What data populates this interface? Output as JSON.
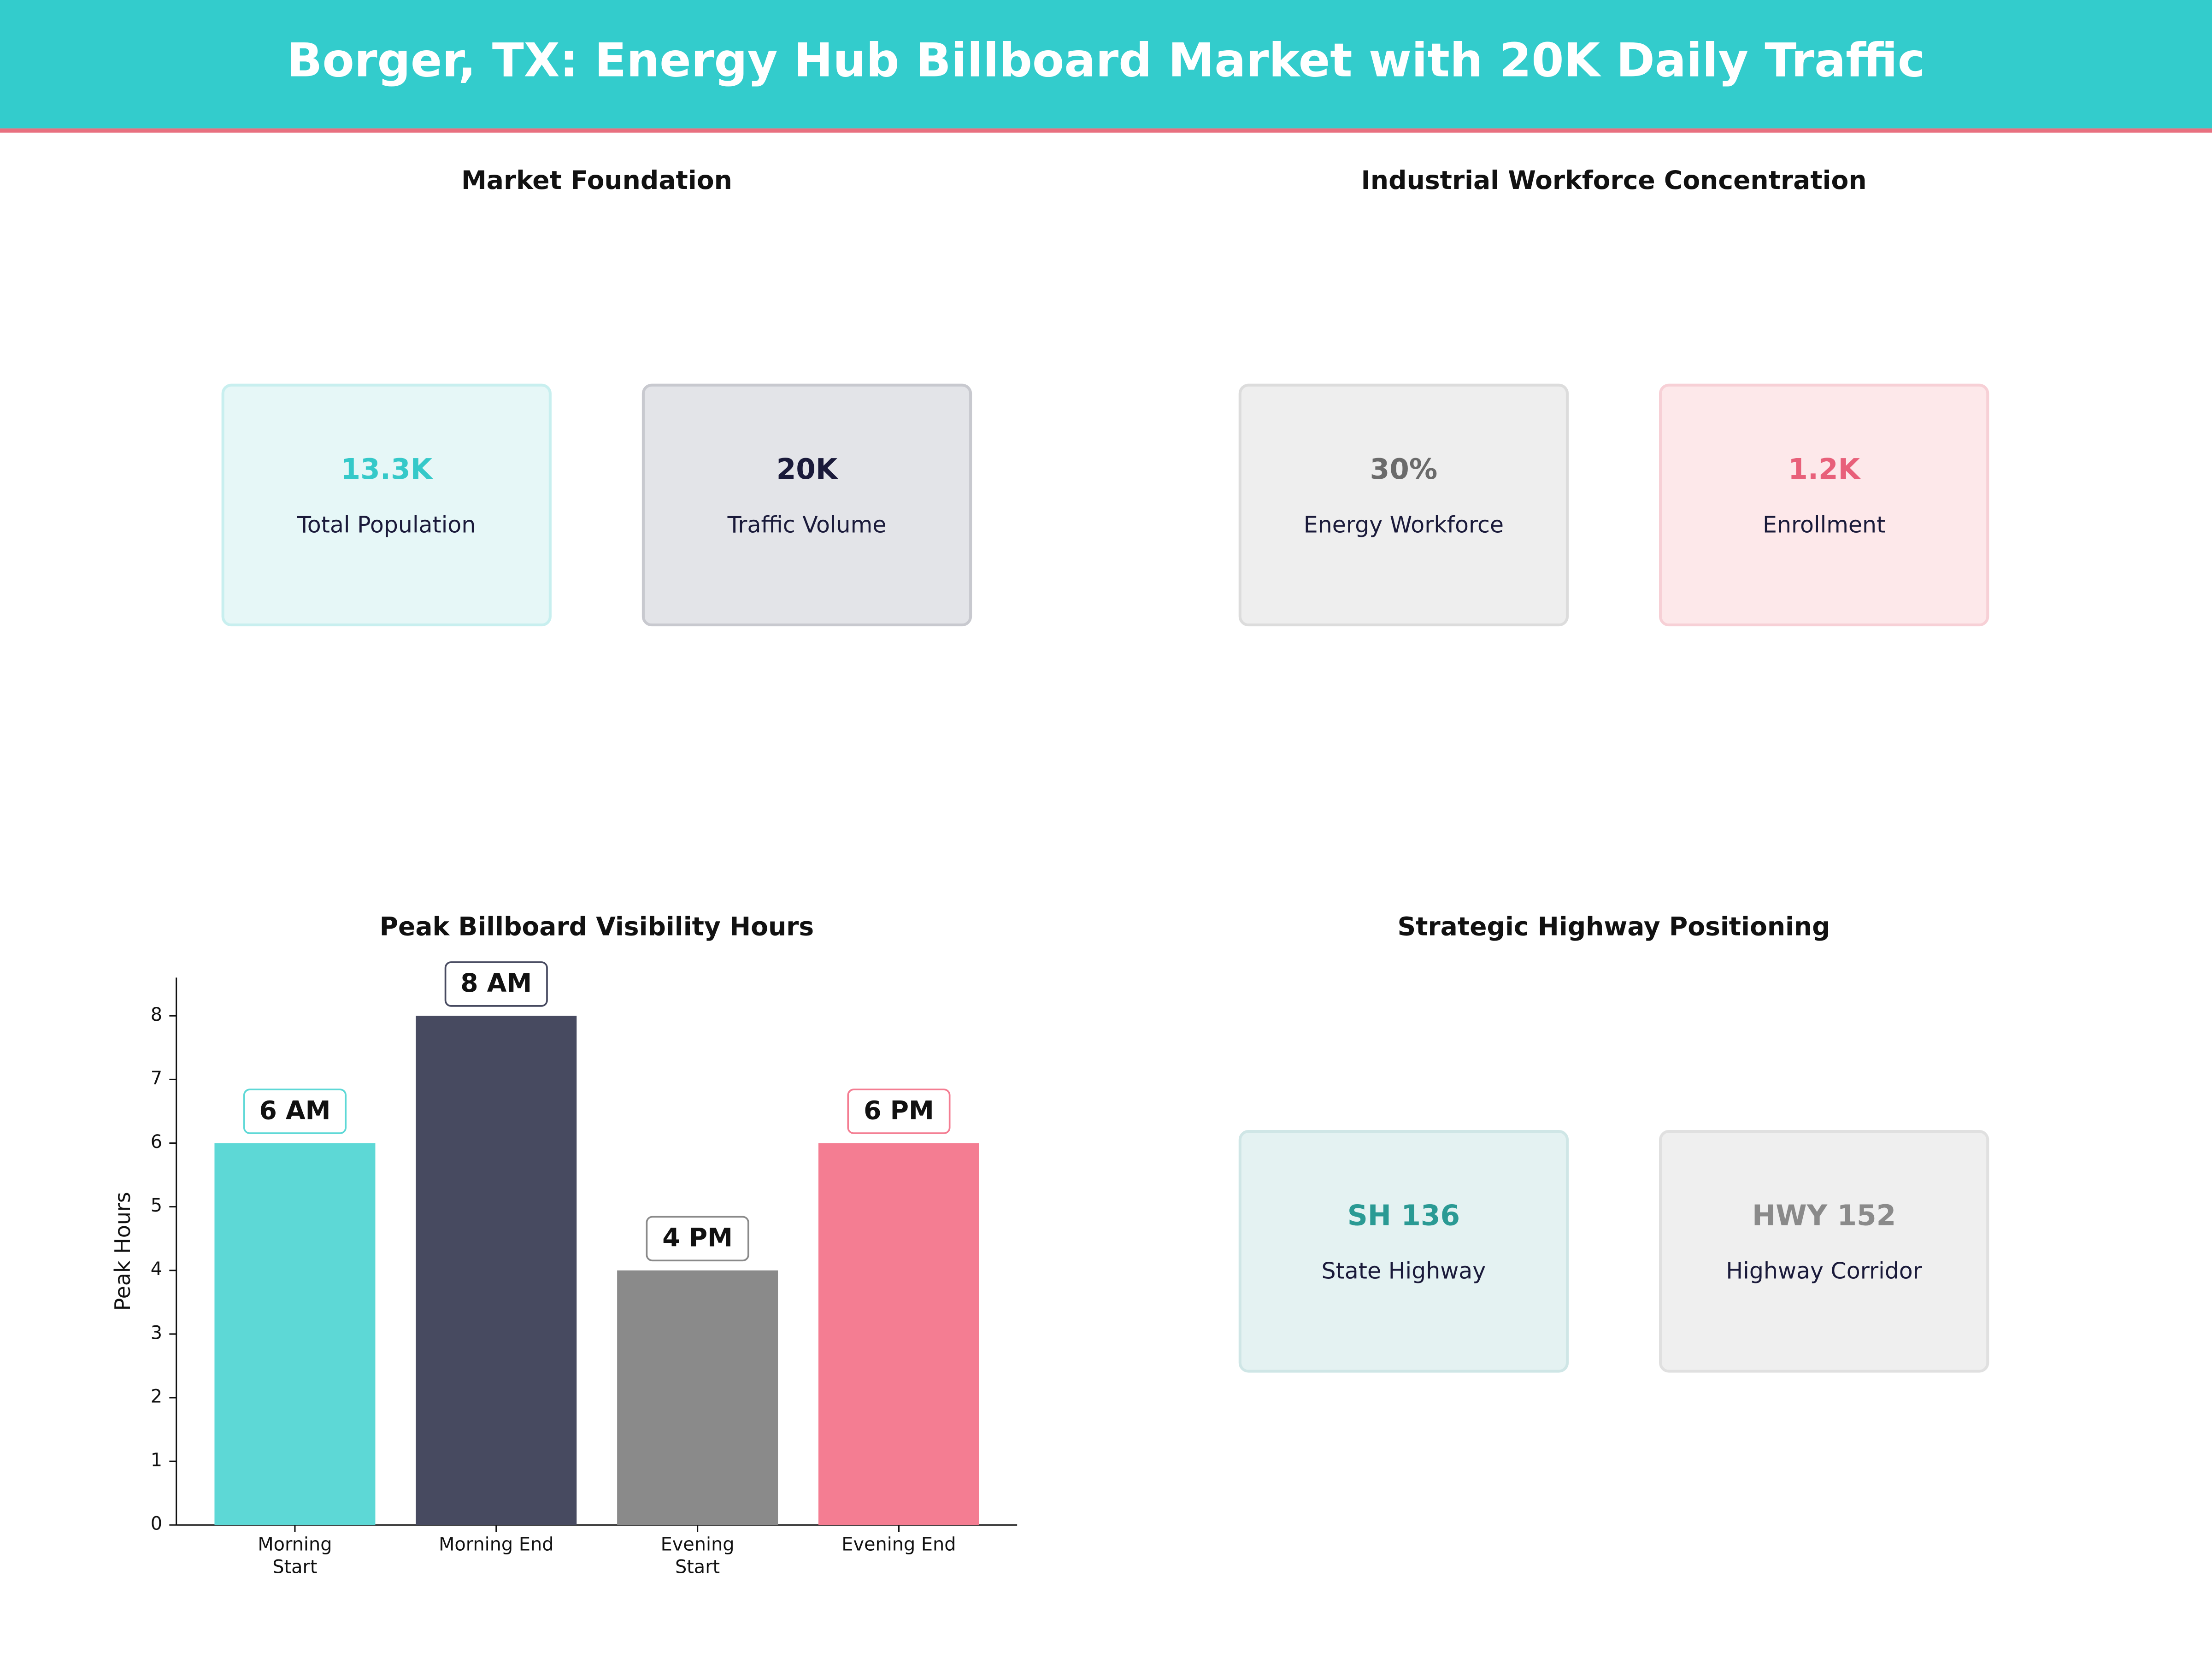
{
  "header": {
    "title": "Borger, TX: Energy Hub Billboard Market with 20K Daily Traffic"
  },
  "panels": [
    {
      "title": "Market Foundation",
      "cards": [
        {
          "value": "13.3K",
          "label": "Total Population",
          "color": "#35c9c9",
          "background": "#e6f7f7",
          "border": "#c8efef"
        },
        {
          "value": "20K",
          "label": "Traffic Volume",
          "color": "#1a1a3a",
          "background": "#e3e4e8",
          "border": "#c8c9cf"
        }
      ]
    },
    {
      "title": "Industrial Workforce Concentration",
      "cards": [
        {
          "value": "30%",
          "label": "Energy Workforce",
          "color": "#6b6b6b",
          "background": "#eeeeee",
          "border": "#dcdcdc"
        },
        {
          "value": "1.2K",
          "label": "Enrollment",
          "color": "#e8607a",
          "background": "#fde8ea",
          "border": "#f7d0d6"
        }
      ]
    },
    {
      "title": "Strategic Highway Positioning",
      "cards": [
        {
          "value": "SH 136",
          "label": "State Highway",
          "color": "#2a9a94",
          "background": "#e4f2f2",
          "border": "#cfe6e6"
        },
        {
          "value": "HWY 152",
          "label": "Highway Corridor",
          "color": "#8a8a8a",
          "background": "#efefef",
          "border": "#e0e0e0"
        }
      ]
    }
  ],
  "chart_data": {
    "type": "bar",
    "title": "Peak Billboard Visibility Hours",
    "y_label": "Peak Hours",
    "categories": [
      "Morning\nStart",
      "Morning End",
      "Evening\nStart",
      "Evening End"
    ],
    "values": [
      6,
      8,
      4,
      6
    ],
    "value_labels": [
      "6 AM",
      "8 AM",
      "4 PM",
      "6 PM"
    ],
    "colors": [
      "#5dd8d6",
      "#474a60",
      "#8a8a8a",
      "#f47d92"
    ],
    "ylim": [
      0,
      8.6
    ],
    "yticks": [
      0,
      1,
      2,
      3,
      4,
      5,
      6,
      7,
      8
    ],
    "grid": false
  }
}
